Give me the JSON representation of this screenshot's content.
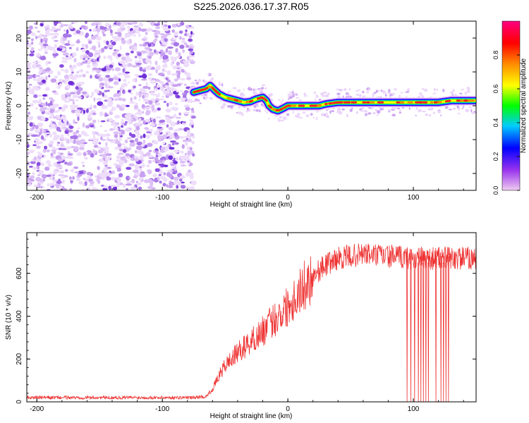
{
  "title": "S225.2026.036.17.37.R05",
  "chart_data": [
    {
      "type": "heatmap",
      "panel": "spectrogram",
      "xlabel": "Height of straight line (km)",
      "ylabel": "Frequency (Hz)",
      "xlim": [
        -208,
        150
      ],
      "ylim": [
        -25,
        25
      ],
      "xticks": [
        -200,
        -100,
        0,
        100
      ],
      "xtick_labels": [
        "-200",
        "-100",
        "0",
        "100"
      ],
      "yticks": [
        -20,
        -10,
        0,
        10,
        20
      ],
      "ytick_labels": [
        "-20",
        "-10",
        "0",
        "10",
        "20"
      ],
      "noise_region_x": [
        -208,
        -75
      ],
      "ridge": {
        "x": [
          -75,
          -70,
          -65,
          -62,
          -58,
          -55,
          -50,
          -45,
          -40,
          -35,
          -30,
          -25,
          -20,
          -17,
          -15,
          -12,
          -8,
          -5,
          0,
          5,
          10,
          20,
          25,
          30,
          40,
          60,
          80,
          100,
          120,
          130,
          140,
          150
        ],
        "y": [
          4,
          4.5,
          5,
          6,
          4.5,
          3.5,
          2.5,
          2,
          1.5,
          1,
          1.2,
          2,
          2.5,
          1.5,
          0,
          -1,
          -1.5,
          -1,
          0,
          0,
          0,
          0,
          0,
          0.5,
          1,
          1,
          1,
          1,
          1,
          1.5,
          1.5,
          1.5
        ]
      },
      "colorbar": {
        "label": "Normalized spectral amplitude",
        "range": [
          0.0,
          1.0
        ],
        "ticks": [
          0.0,
          0.2,
          0.4,
          0.6,
          0.8
        ],
        "tick_labels": [
          "0.0",
          "0.2",
          "0.4",
          "0.6",
          "0.8"
        ],
        "colors": [
          "#f0ccf0",
          "#9933ee",
          "#0000ff",
          "#00ccff",
          "#00ff00",
          "#ffff00",
          "#ff8800",
          "#ff0000",
          "#ff0080"
        ]
      }
    },
    {
      "type": "line",
      "panel": "snr",
      "xlabel": "Height of straight line (km)",
      "ylabel": "SNR (10 * v/v)",
      "xlim": [
        -208,
        150
      ],
      "ylim": [
        0,
        790
      ],
      "xticks": [
        -200,
        -100,
        0,
        100
      ],
      "xtick_labels": [
        "-200",
        "-100",
        "0",
        "100"
      ],
      "yticks": [
        0,
        200,
        400,
        600
      ],
      "ytick_labels": [
        "0",
        "200",
        "400",
        "600"
      ],
      "line_color": "#ee3333",
      "envelope": {
        "x": [
          -208,
          -75,
          -65,
          -60,
          -55,
          -50,
          -40,
          -30,
          -20,
          -10,
          0,
          10,
          20,
          30,
          40,
          60,
          80,
          100,
          120,
          150
        ],
        "y": [
          20,
          20,
          25,
          60,
          120,
          170,
          230,
          280,
          330,
          390,
          450,
          520,
          590,
          640,
          670,
          690,
          680,
          670,
          670,
          670
        ]
      },
      "dropouts_x": [
        95,
        98,
        101,
        104,
        106,
        108,
        110,
        112,
        118,
        122,
        124,
        126,
        128
      ]
    }
  ]
}
